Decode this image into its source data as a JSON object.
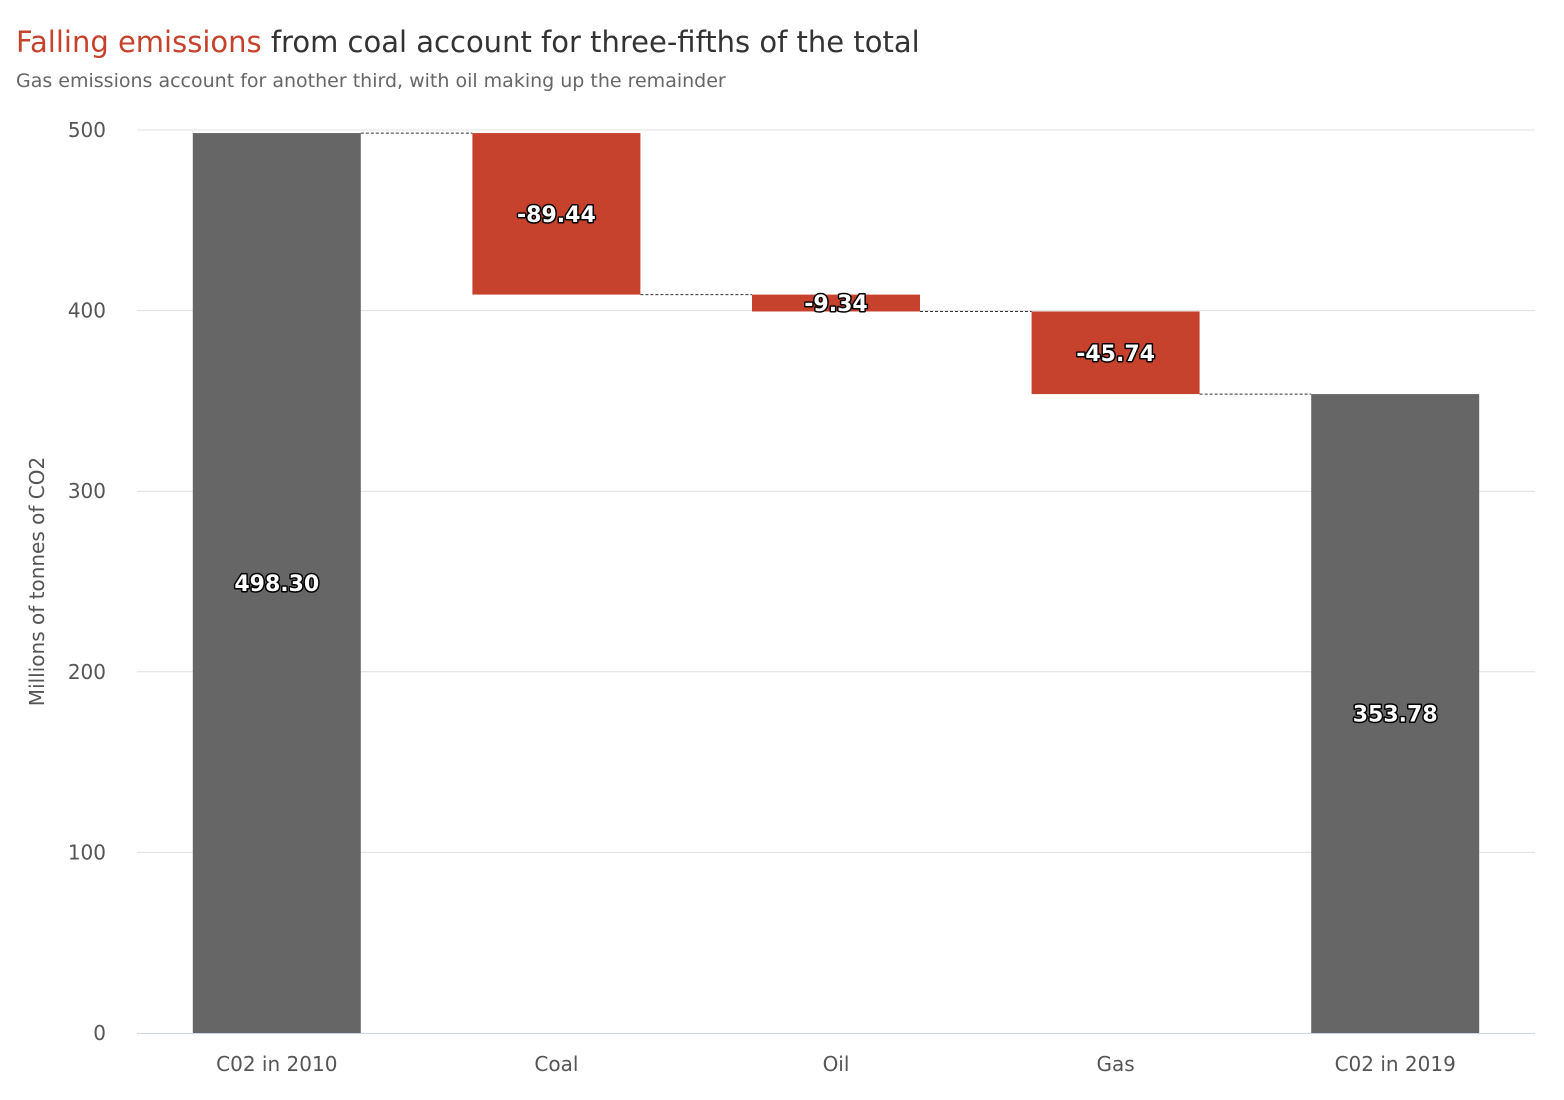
{
  "chart_data": {
    "type": "waterfall",
    "title_highlight": "Falling emissions",
    "title_rest": " from coal account for three-fifths of the total",
    "subtitle": "Gas emissions account for another third, with oil making up the remainder",
    "ylabel": "Millions of tonnes of CO2",
    "ylim": [
      0,
      500
    ],
    "yticks": [
      0,
      100,
      200,
      300,
      400,
      500
    ],
    "grid": true,
    "categories": [
      "C02 in 2010",
      "Coal",
      "Oil",
      "Gas",
      "C02 in 2019"
    ],
    "values": [
      498.3,
      -89.44,
      -9.34,
      -45.74,
      353.78
    ],
    "labels": [
      "498.30",
      "-89.44",
      "-9.34",
      "-45.74",
      "353.78"
    ],
    "kinds": [
      "total",
      "delta",
      "delta",
      "delta",
      "total"
    ],
    "colors": {
      "total": "#666666",
      "decrease": "#c6422c",
      "grid": "#e0e0e0",
      "axis": "#ccd6eb",
      "connector": "#333333",
      "accent": "#c6422c"
    }
  }
}
